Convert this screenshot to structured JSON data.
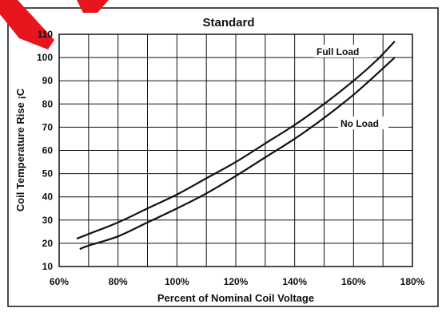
{
  "chart_data": {
    "type": "line",
    "title": "Standard",
    "xlabel": "Percent of Nominal Coil Voltage",
    "ylabel": "Coil Temperature Rise ¡C",
    "x_ticks": [
      60,
      80,
      100,
      120,
      140,
      160,
      180
    ],
    "x_tick_labels": [
      "60%",
      "80%",
      "100%",
      "120%",
      "140%",
      "160%",
      "180%"
    ],
    "y_ticks": [
      10,
      20,
      30,
      40,
      50,
      60,
      70,
      80,
      90,
      100,
      110
    ],
    "y_tick_labels": [
      "10",
      "20",
      "30",
      "40",
      "50",
      "60",
      "70",
      "80",
      "90",
      "100",
      "110"
    ],
    "xlim": [
      60,
      180
    ],
    "ylim": [
      10,
      110
    ],
    "grid": true,
    "series": [
      {
        "name": "Full Load",
        "x": [
          66,
          70,
          80,
          90,
          100,
          110,
          120,
          130,
          140,
          150,
          160,
          168,
          174
        ],
        "y": [
          22,
          24,
          29,
          35,
          41,
          48,
          55,
          63,
          71,
          80,
          90,
          99,
          107
        ]
      },
      {
        "name": "No Load",
        "x": [
          67,
          70,
          80,
          90,
          100,
          110,
          120,
          130,
          140,
          150,
          160,
          168,
          174
        ],
        "y": [
          17.5,
          19,
          23,
          29,
          35,
          41.5,
          49,
          57,
          65,
          74,
          84,
          93,
          100
        ]
      }
    ],
    "annotations": [
      "Full Load",
      "No Load"
    ],
    "accent_color": "#e8151e",
    "line_color": "#111111"
  }
}
